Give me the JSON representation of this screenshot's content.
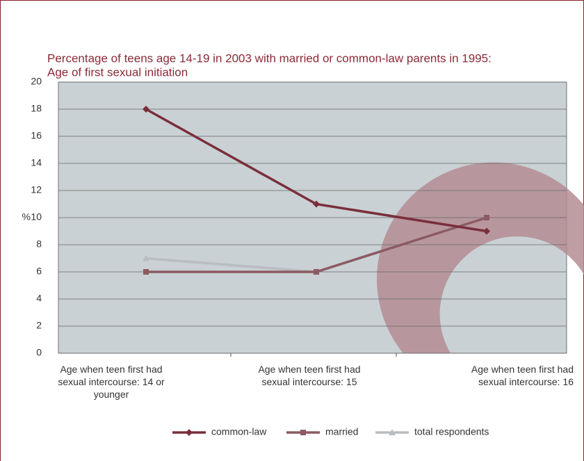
{
  "chart_data": {
    "type": "line",
    "title": "Percentage of teens age 14-19 in 2003 with married or common-law parents in 1995:",
    "subtitle": "Age of first sexual initiation",
    "ylabel": "%",
    "categories": [
      "Age when teen first had sexual intercourse: 14 or younger",
      "Age when teen first had sexual intercourse: 15",
      "Age when teen first had sexual intercourse: 16"
    ],
    "series": [
      {
        "name": "common-law",
        "color": "#7a2e3b",
        "values": [
          18,
          11,
          9
        ]
      },
      {
        "name": "married",
        "color": "#8c5a63",
        "values": [
          6,
          6,
          10
        ]
      },
      {
        "name": "total respondents",
        "color": "#b9bdbf",
        "values": [
          7,
          6,
          10
        ]
      }
    ],
    "ylim": [
      0,
      20
    ],
    "yticks": [
      0,
      2,
      4,
      6,
      8,
      10,
      12,
      14,
      16,
      18,
      20
    ],
    "grid": true,
    "legend": "bottom"
  }
}
